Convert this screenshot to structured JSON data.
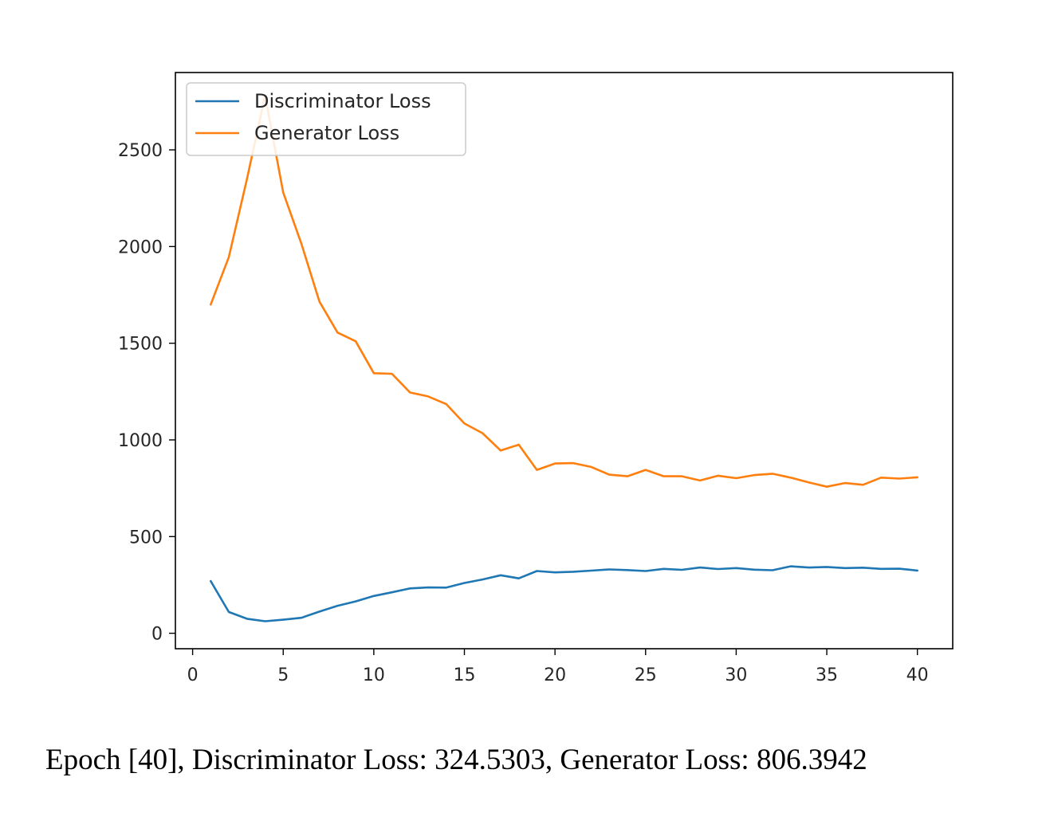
{
  "chart_data": {
    "type": "line",
    "title": "",
    "xlabel": "",
    "ylabel": "",
    "xlim": [
      -0.95,
      41.95
    ],
    "ylim": [
      -80,
      2900
    ],
    "xticks": [
      0,
      5,
      10,
      15,
      20,
      25,
      30,
      35,
      40
    ],
    "yticks": [
      0,
      500,
      1000,
      1500,
      2000,
      2500
    ],
    "grid": false,
    "legend": "top-left",
    "x": [
      1,
      2,
      3,
      4,
      5,
      6,
      7,
      8,
      9,
      10,
      11,
      12,
      13,
      14,
      15,
      16,
      17,
      18,
      19,
      20,
      21,
      22,
      23,
      24,
      25,
      26,
      27,
      28,
      29,
      30,
      31,
      32,
      33,
      34,
      35,
      36,
      37,
      38,
      39,
      40
    ],
    "series": [
      {
        "name": "Discriminator Loss",
        "color": "#1f77b4",
        "values": [
          270,
          110,
          75,
          62,
          70,
          80,
          112,
          142,
          165,
          193,
          212,
          232,
          237,
          236,
          260,
          278,
          300,
          284,
          322,
          315,
          318,
          324,
          330,
          327,
          322,
          333,
          328,
          340,
          332,
          337,
          329,
          326,
          346,
          340,
          343,
          337,
          339,
          333,
          334,
          324.5303
        ]
      },
      {
        "name": "Generator Loss",
        "color": "#ff7f0e",
        "values": [
          1700,
          1945,
          2350,
          2780,
          2280,
          2015,
          1715,
          1555,
          1510,
          1345,
          1342,
          1245,
          1225,
          1185,
          1085,
          1035,
          945,
          975,
          845,
          878,
          880,
          860,
          820,
          812,
          845,
          812,
          812,
          790,
          815,
          802,
          818,
          825,
          805,
          780,
          758,
          777,
          768,
          805,
          800,
          806.3942
        ]
      }
    ]
  },
  "caption": "Epoch [40], Discriminator Loss: 324.5303, Generator Loss: 806.3942"
}
